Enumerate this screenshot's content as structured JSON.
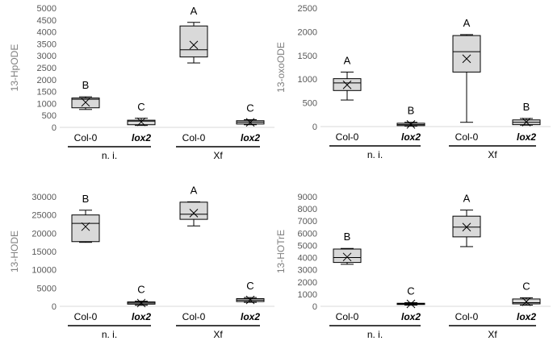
{
  "chart_data": [
    {
      "type": "box",
      "ylabel": "13-HpODE",
      "ylim": [
        0,
        5000
      ],
      "yticks": [
        0,
        500,
        1000,
        1500,
        2000,
        2500,
        3000,
        3500,
        4000,
        4500,
        5000
      ],
      "categories": [
        "Col-0",
        "lox2",
        "Col-0",
        "lox2"
      ],
      "groups": [
        "n. i.",
        "Xf"
      ],
      "boxes": [
        {
          "min": 750,
          "q1": 820,
          "median": 1180,
          "q3": 1230,
          "max": 1280,
          "mean": 1050,
          "letter": "B"
        },
        {
          "min": 80,
          "q1": 110,
          "median": 260,
          "q3": 300,
          "max": 380,
          "mean": 230,
          "letter": "C"
        },
        {
          "min": 2700,
          "q1": 2950,
          "median": 3250,
          "q3": 4250,
          "max": 4400,
          "mean": 3450,
          "letter": "A"
        },
        {
          "min": 110,
          "q1": 140,
          "median": 220,
          "q3": 280,
          "max": 320,
          "mean": 210,
          "letter": "C"
        }
      ]
    },
    {
      "type": "box",
      "ylabel": "13-oxoODE",
      "ylim": [
        0,
        2500
      ],
      "yticks": [
        0,
        500,
        1000,
        1500,
        2000,
        2500
      ],
      "categories": [
        "Col-0",
        "lox2",
        "Col-0",
        "lox2"
      ],
      "groups": [
        "n. i.",
        "Xf"
      ],
      "boxes": [
        {
          "min": 560,
          "q1": 760,
          "median": 920,
          "q3": 1010,
          "max": 1150,
          "mean": 880,
          "letter": "A"
        },
        {
          "min": 10,
          "q1": 20,
          "median": 40,
          "q3": 70,
          "max": 90,
          "mean": 45,
          "letter": "B"
        },
        {
          "min": 90,
          "q1": 1150,
          "median": 1580,
          "q3": 1920,
          "max": 1940,
          "mean": 1430,
          "letter": "A"
        },
        {
          "min": 30,
          "q1": 40,
          "median": 90,
          "q3": 140,
          "max": 170,
          "mean": 95,
          "letter": "B"
        }
      ]
    },
    {
      "type": "box",
      "ylabel": "13-HODE",
      "ylim": [
        0,
        30000
      ],
      "yticks": [
        0,
        5000,
        10000,
        15000,
        20000,
        25000,
        30000
      ],
      "categories": [
        "Col-0",
        "lox2",
        "Col-0",
        "lox2"
      ],
      "groups": [
        "n. i.",
        "Xf"
      ],
      "boxes": [
        {
          "min": 17500,
          "q1": 17700,
          "median": 22700,
          "q3": 25000,
          "max": 26300,
          "mean": 21800,
          "letter": "B"
        },
        {
          "min": 300,
          "q1": 600,
          "median": 900,
          "q3": 1200,
          "max": 1400,
          "mean": 900,
          "letter": "C"
        },
        {
          "min": 22000,
          "q1": 23800,
          "median": 25200,
          "q3": 28500,
          "max": 28600,
          "mean": 25500,
          "letter": "A"
        },
        {
          "min": 1100,
          "q1": 1300,
          "median": 1700,
          "q3": 2100,
          "max": 2400,
          "mean": 1750,
          "letter": "C"
        }
      ]
    },
    {
      "type": "box",
      "ylabel": "13-HOTrE",
      "ylim": [
        0,
        9000
      ],
      "yticks": [
        0,
        1000,
        2000,
        3000,
        4000,
        5000,
        6000,
        7000,
        8000,
        9000
      ],
      "categories": [
        "Col-0",
        "lox2",
        "Col-0",
        "lox2"
      ],
      "groups": [
        "n. i.",
        "Xf"
      ],
      "boxes": [
        {
          "min": 3450,
          "q1": 3600,
          "median": 4000,
          "q3": 4700,
          "max": 4750,
          "mean": 4050,
          "letter": "B"
        },
        {
          "min": 100,
          "q1": 150,
          "median": 200,
          "q3": 250,
          "max": 300,
          "mean": 200,
          "letter": "C"
        },
        {
          "min": 4900,
          "q1": 5700,
          "median": 6500,
          "q3": 7400,
          "max": 7900,
          "mean": 6500,
          "letter": "A"
        },
        {
          "min": 100,
          "q1": 200,
          "median": 300,
          "q3": 600,
          "max": 700,
          "mean": 380,
          "letter": "C"
        }
      ]
    }
  ]
}
